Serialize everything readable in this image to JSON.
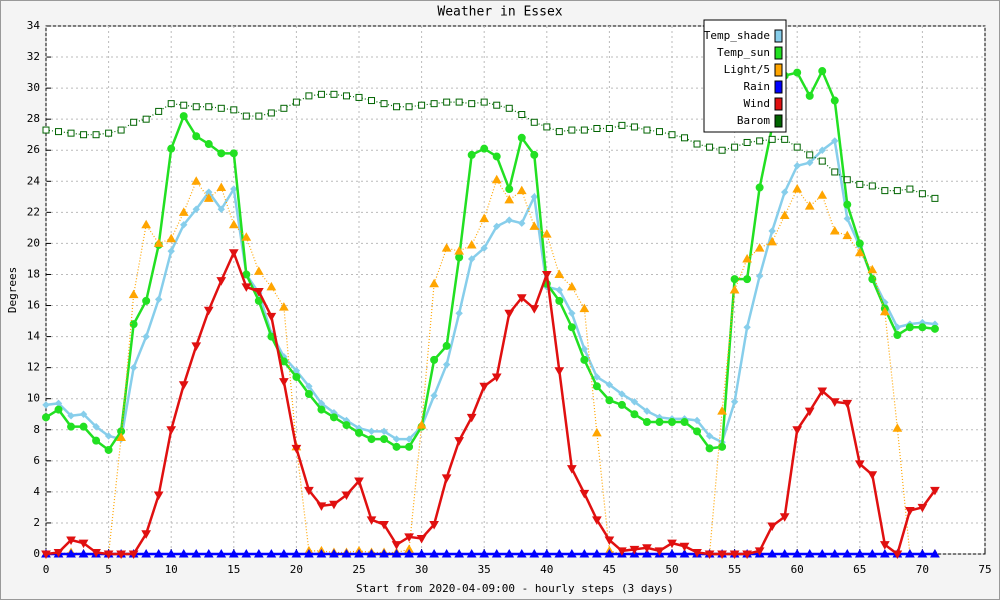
{
  "chart_data": {
    "type": "line",
    "title": "Weather in Essex",
    "xlabel": "Start from 2020-04-09:00 - hourly steps (3 days)",
    "ylabel": "Degrees",
    "xlim": [
      0,
      75
    ],
    "xticks": [
      0,
      5,
      10,
      15,
      20,
      25,
      30,
      35,
      40,
      45,
      50,
      55,
      60,
      65,
      70,
      75
    ],
    "ylim": [
      0,
      34
    ],
    "yticks": [
      0,
      2,
      4,
      6,
      8,
      10,
      12,
      14,
      16,
      18,
      20,
      22,
      24,
      26,
      28,
      30,
      32,
      34
    ],
    "grid": true,
    "legend": "top-right",
    "x": [
      0,
      1,
      2,
      3,
      4,
      5,
      6,
      7,
      8,
      9,
      10,
      11,
      12,
      13,
      14,
      15,
      16,
      17,
      18,
      19,
      20,
      21,
      22,
      23,
      24,
      25,
      26,
      27,
      28,
      29,
      30,
      31,
      32,
      33,
      34,
      35,
      36,
      37,
      38,
      39,
      40,
      41,
      42,
      43,
      44,
      45,
      46,
      47,
      48,
      49,
      50,
      51,
      52,
      53,
      54,
      55,
      56,
      57,
      58,
      59,
      60,
      61,
      62,
      63,
      64,
      65,
      66,
      67,
      68,
      69,
      70,
      71
    ],
    "series": [
      {
        "name": "Temp_shade",
        "color": "#87ceeb",
        "marker": "diamond",
        "line": "solid",
        "values": [
          9.6,
          9.7,
          8.9,
          9.0,
          8.2,
          7.6,
          7.4,
          12.0,
          14.0,
          16.4,
          19.5,
          21.2,
          22.2,
          23.3,
          22.2,
          23.5,
          18.0,
          16.8,
          14.2,
          12.7,
          11.8,
          10.8,
          9.7,
          9.1,
          8.6,
          8.1,
          7.9,
          7.9,
          7.4,
          7.4,
          8.2,
          10.2,
          12.2,
          15.5,
          19.0,
          19.7,
          21.1,
          21.5,
          21.3,
          23.0,
          17.2,
          17.0,
          15.5,
          13.2,
          11.4,
          10.9,
          10.3,
          9.8,
          9.2,
          8.8,
          8.7,
          8.7,
          8.6,
          7.6,
          7.2,
          9.8,
          14.6,
          17.9,
          20.8,
          23.3,
          25.0,
          25.2,
          26.0,
          26.6,
          21.6,
          19.8,
          17.8,
          16.2,
          14.6,
          14.8,
          14.9,
          14.8
        ]
      },
      {
        "name": "Temp_sun",
        "color": "#22e022",
        "marker": "circle",
        "line": "solid",
        "values": [
          8.8,
          9.3,
          8.2,
          8.2,
          7.3,
          6.7,
          7.9,
          14.8,
          16.3,
          19.9,
          26.1,
          28.2,
          26.9,
          26.4,
          25.8,
          25.8,
          18.0,
          16.3,
          14.0,
          12.4,
          11.4,
          10.3,
          9.3,
          8.8,
          8.3,
          7.8,
          7.4,
          7.4,
          6.9,
          6.9,
          8.2,
          12.5,
          13.4,
          19.1,
          25.7,
          26.1,
          25.6,
          23.5,
          26.8,
          25.7,
          17.4,
          16.3,
          14.6,
          12.5,
          10.8,
          9.9,
          9.6,
          9.0,
          8.5,
          8.5,
          8.5,
          8.5,
          7.9,
          6.8,
          6.9,
          17.7,
          17.7,
          23.6,
          27.5,
          30.8,
          31.0,
          29.5,
          31.1,
          29.2,
          22.5,
          20.0,
          17.7,
          15.8,
          14.1,
          14.6,
          14.6,
          14.5
        ]
      },
      {
        "name": "Light/5",
        "color": "#ffa500",
        "marker": "triangle-up",
        "line": "dotted",
        "values": [
          0,
          0,
          0.1,
          0,
          0,
          0,
          7.5,
          16.7,
          21.2,
          20.0,
          20.3,
          22.0,
          24.0,
          22.9,
          23.6,
          21.2,
          20.4,
          18.2,
          17.2,
          15.9,
          6.9,
          0.2,
          0.2,
          0.1,
          0.1,
          0.2,
          0.1,
          0.1,
          0.1,
          0.3,
          8.3,
          17.4,
          19.7,
          19.5,
          19.9,
          21.6,
          24.1,
          22.8,
          23.4,
          21.1,
          20.6,
          18.0,
          17.2,
          15.8,
          7.8,
          0.2,
          0,
          0,
          0,
          0,
          0,
          0,
          0,
          0,
          9.2,
          17.0,
          19.0,
          19.7,
          20.1,
          21.8,
          23.5,
          22.4,
          23.1,
          20.8,
          20.5,
          19.4,
          18.3,
          15.6,
          8.1,
          0,
          0,
          0
        ]
      },
      {
        "name": "Rain",
        "color": "#0000ff",
        "marker": "triangle-up",
        "line": "solid",
        "values": [
          0,
          0,
          0,
          0,
          0,
          0,
          0,
          0,
          0,
          0,
          0,
          0,
          0,
          0,
          0,
          0,
          0,
          0,
          0,
          0,
          0,
          0,
          0,
          0,
          0,
          0,
          0,
          0,
          0,
          0,
          0,
          0,
          0,
          0,
          0,
          0,
          0,
          0,
          0,
          0,
          0,
          0,
          0,
          0,
          0,
          0,
          0,
          0,
          0,
          0,
          0,
          0,
          0,
          0,
          0,
          0,
          0,
          0,
          0,
          0,
          0,
          0,
          0,
          0,
          0,
          0,
          0,
          0,
          0,
          0,
          0,
          0
        ]
      },
      {
        "name": "Wind",
        "color": "#e01010",
        "marker": "triangle-down",
        "line": "solid",
        "values": [
          0,
          0.1,
          0.9,
          0.7,
          0.1,
          0,
          0,
          0,
          1.3,
          3.8,
          8.0,
          10.9,
          13.4,
          15.7,
          17.6,
          19.4,
          17.2,
          16.9,
          15.3,
          11.1,
          6.8,
          4.1,
          3.1,
          3.2,
          3.8,
          4.7,
          2.2,
          1.9,
          0.6,
          1.1,
          1.0,
          1.9,
          4.9,
          7.3,
          8.8,
          10.8,
          11.4,
          15.5,
          16.5,
          15.8,
          18.0,
          11.8,
          5.5,
          3.9,
          2.2,
          0.9,
          0.2,
          0.3,
          0.4,
          0.2,
          0.7,
          0.5,
          0.1,
          0,
          0,
          0,
          0,
          0.2,
          1.8,
          2.4,
          8.0,
          9.2,
          10.5,
          9.8,
          9.7,
          5.8,
          5.1,
          0.6,
          0,
          2.8,
          3.0,
          4.1
        ]
      },
      {
        "name": "Barom",
        "color": "#006400",
        "marker": "square-open",
        "line": "dotted",
        "values": [
          27.3,
          27.2,
          27.1,
          27.0,
          27.0,
          27.1,
          27.3,
          27.8,
          28.0,
          28.5,
          29.0,
          28.9,
          28.8,
          28.8,
          28.7,
          28.6,
          28.2,
          28.2,
          28.4,
          28.7,
          29.1,
          29.5,
          29.6,
          29.6,
          29.5,
          29.4,
          29.2,
          29.0,
          28.8,
          28.8,
          28.9,
          29.0,
          29.1,
          29.1,
          29.0,
          29.1,
          28.9,
          28.7,
          28.3,
          27.8,
          27.5,
          27.2,
          27.3,
          27.3,
          27.4,
          27.4,
          27.6,
          27.5,
          27.3,
          27.2,
          27.0,
          26.8,
          26.4,
          26.2,
          26.0,
          26.2,
          26.5,
          26.6,
          26.7,
          26.7,
          26.2,
          25.7,
          25.3,
          24.6,
          24.1,
          23.8,
          23.7,
          23.4,
          23.4,
          23.5,
          23.2,
          22.9
        ]
      }
    ]
  }
}
